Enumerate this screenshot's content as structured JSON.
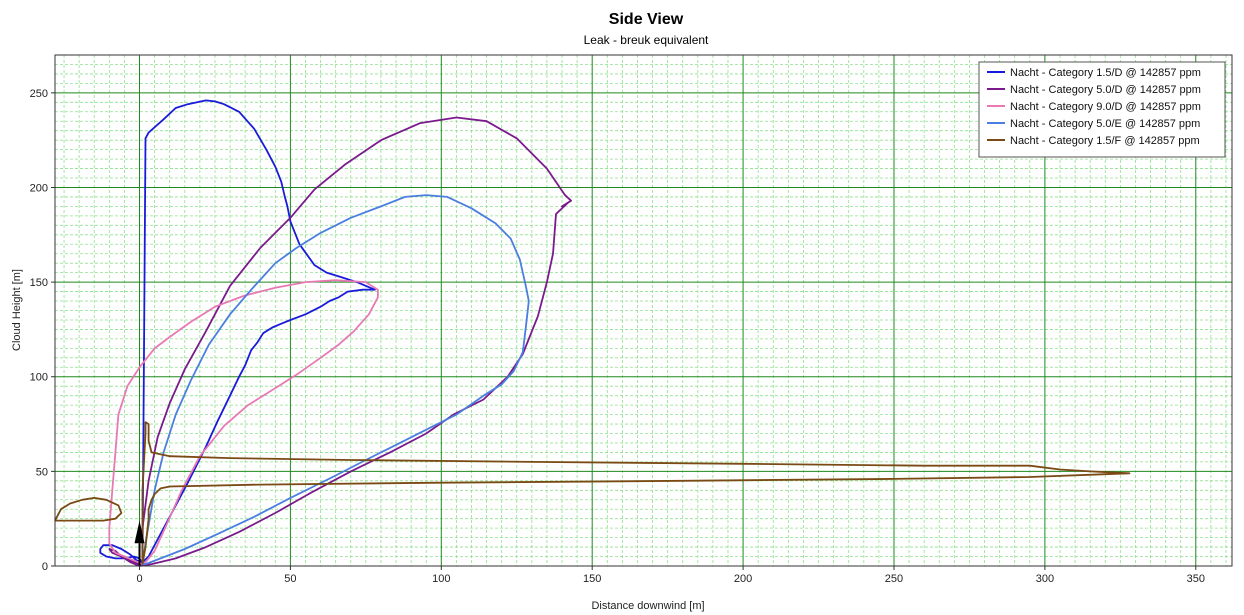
{
  "chart_data": {
    "type": "line",
    "title": "Side View",
    "subtitle": "Leak - breuk equivalent",
    "xlabel": "Distance downwind [m]",
    "ylabel": "Cloud Height [m]",
    "xlim": [
      -28,
      362
    ],
    "ylim": [
      0,
      270
    ],
    "xticks": [
      0,
      50,
      100,
      150,
      200,
      250,
      300,
      350
    ],
    "yticks": [
      0,
      50,
      100,
      150,
      200,
      250
    ],
    "grid": true,
    "legend_position": "top-right",
    "series": [
      {
        "name": "Nacht - Category 1.5/D @ 142857 ppm",
        "color": "#1a1adc",
        "points": [
          [
            1,
            1
          ],
          [
            2,
            226
          ],
          [
            3,
            229
          ],
          [
            8,
            236
          ],
          [
            12,
            242
          ],
          [
            16,
            244
          ],
          [
            22,
            246
          ],
          [
            25,
            245.5
          ],
          [
            28,
            244
          ],
          [
            33,
            240
          ],
          [
            38,
            231
          ],
          [
            42,
            220
          ],
          [
            45,
            211
          ],
          [
            47,
            203
          ],
          [
            48,
            196
          ],
          [
            49,
            190
          ],
          [
            50,
            182
          ],
          [
            53,
            170
          ],
          [
            58,
            159
          ],
          [
            62,
            155
          ],
          [
            66,
            153
          ],
          [
            72,
            150
          ],
          [
            78,
            146
          ],
          [
            74,
            146
          ],
          [
            69,
            145
          ],
          [
            66,
            142
          ],
          [
            63,
            140
          ],
          [
            60,
            137
          ],
          [
            55,
            133
          ],
          [
            50,
            130
          ],
          [
            47,
            128
          ],
          [
            44,
            126
          ],
          [
            41,
            123
          ],
          [
            39,
            118
          ],
          [
            37,
            114
          ],
          [
            35,
            106
          ],
          [
            33,
            100
          ],
          [
            30,
            90
          ],
          [
            26,
            77
          ],
          [
            22,
            63
          ],
          [
            16,
            44
          ],
          [
            10,
            26
          ],
          [
            6,
            14
          ],
          [
            3,
            5
          ],
          [
            1,
            2
          ],
          [
            -1,
            3
          ],
          [
            -3,
            6
          ],
          [
            -6,
            9
          ],
          [
            -9,
            11
          ],
          [
            -12,
            11
          ],
          [
            -13,
            9
          ],
          [
            -13,
            7
          ],
          [
            -11,
            5
          ],
          [
            -8,
            4
          ],
          [
            -5,
            4
          ],
          [
            -2,
            5
          ],
          [
            0,
            4
          ],
          [
            1,
            1
          ]
        ]
      },
      {
        "name": "Nacht - Category 5.0/D @ 142857 ppm",
        "color": "#7a1a8c",
        "points": [
          [
            1,
            1
          ],
          [
            1,
            20
          ],
          [
            3,
            45
          ],
          [
            6,
            68
          ],
          [
            10,
            86
          ],
          [
            15,
            104
          ],
          [
            22,
            124
          ],
          [
            30,
            148
          ],
          [
            40,
            168
          ],
          [
            50,
            184
          ],
          [
            58,
            199
          ],
          [
            68,
            212
          ],
          [
            80,
            225
          ],
          [
            93,
            234
          ],
          [
            105,
            237
          ],
          [
            115,
            235
          ],
          [
            125,
            226
          ],
          [
            135,
            210
          ],
          [
            141,
            196
          ],
          [
            143,
            193
          ],
          [
            140,
            190
          ],
          [
            142,
            192
          ],
          [
            138,
            186
          ],
          [
            137,
            165
          ],
          [
            135,
            150
          ],
          [
            132,
            132
          ],
          [
            127,
            112
          ],
          [
            122,
            100
          ],
          [
            114,
            88
          ],
          [
            104,
            80
          ],
          [
            95,
            70
          ],
          [
            83,
            60
          ],
          [
            70,
            50
          ],
          [
            56,
            38
          ],
          [
            45,
            28
          ],
          [
            33,
            18
          ],
          [
            22,
            10
          ],
          [
            12,
            4
          ],
          [
            4,
            1
          ],
          [
            0,
            0
          ],
          [
            -3,
            2
          ],
          [
            -6,
            5
          ],
          [
            -8,
            8
          ],
          [
            -10,
            9
          ],
          [
            -9,
            7
          ],
          [
            -6,
            5
          ],
          [
            -3,
            3
          ],
          [
            0,
            1
          ],
          [
            1,
            1
          ]
        ]
      },
      {
        "name": "Nacht - Category 9.0/D @ 142857 ppm",
        "color": "#e879b4",
        "points": [
          [
            1,
            1
          ],
          [
            -2,
            3
          ],
          [
            -5,
            5
          ],
          [
            -8,
            7
          ],
          [
            -10,
            12
          ],
          [
            -10,
            20
          ],
          [
            -9,
            40
          ],
          [
            -8,
            60
          ],
          [
            -7,
            80
          ],
          [
            -4,
            95
          ],
          [
            0,
            105
          ],
          [
            5,
            115
          ],
          [
            10,
            121
          ],
          [
            17,
            129
          ],
          [
            25,
            137
          ],
          [
            35,
            143
          ],
          [
            45,
            147
          ],
          [
            55,
            150
          ],
          [
            65,
            151
          ],
          [
            75,
            150
          ],
          [
            79,
            146
          ],
          [
            79,
            142
          ],
          [
            76,
            133
          ],
          [
            71,
            124
          ],
          [
            66,
            117
          ],
          [
            60,
            110
          ],
          [
            52,
            101
          ],
          [
            45,
            94
          ],
          [
            36,
            85
          ],
          [
            28,
            74
          ],
          [
            20,
            58
          ],
          [
            14,
            40
          ],
          [
            9,
            22
          ],
          [
            5,
            8
          ],
          [
            2,
            2
          ],
          [
            1,
            1
          ]
        ]
      },
      {
        "name": "Nacht - Category 5.0/E @ 142857 ppm",
        "color": "#4a7ee0",
        "points": [
          [
            1,
            1
          ],
          [
            2,
            12
          ],
          [
            5,
            40
          ],
          [
            8,
            60
          ],
          [
            12,
            80
          ],
          [
            17,
            98
          ],
          [
            23,
            117
          ],
          [
            30,
            133
          ],
          [
            37,
            146
          ],
          [
            45,
            160
          ],
          [
            52,
            168
          ],
          [
            60,
            176
          ],
          [
            70,
            184
          ],
          [
            80,
            190
          ],
          [
            88,
            195
          ],
          [
            95,
            196
          ],
          [
            102,
            195
          ],
          [
            110,
            189
          ],
          [
            118,
            181
          ],
          [
            123,
            173
          ],
          [
            126,
            162
          ],
          [
            128,
            148
          ],
          [
            129,
            140
          ],
          [
            128,
            126
          ],
          [
            127,
            113
          ],
          [
            124,
            103
          ],
          [
            120,
            96
          ],
          [
            114,
            90
          ],
          [
            105,
            80
          ],
          [
            95,
            72
          ],
          [
            85,
            64
          ],
          [
            75,
            56
          ],
          [
            64,
            47
          ],
          [
            50,
            36
          ],
          [
            38,
            26
          ],
          [
            26,
            17
          ],
          [
            15,
            9
          ],
          [
            7,
            4
          ],
          [
            2,
            1
          ],
          [
            1,
            1
          ]
        ]
      },
      {
        "name": "Nacht - Category 1.5/F @ 142857 ppm",
        "color": "#7a4a14",
        "points": [
          [
            1,
            1
          ],
          [
            1,
            20
          ],
          [
            1,
            40
          ],
          [
            2,
            70
          ],
          [
            2,
            76
          ],
          [
            3,
            75
          ],
          [
            3,
            66
          ],
          [
            4,
            60
          ],
          [
            10,
            58
          ],
          [
            30,
            57
          ],
          [
            70,
            56
          ],
          [
            130,
            55
          ],
          [
            200,
            54
          ],
          [
            260,
            53
          ],
          [
            295,
            53
          ],
          [
            305,
            51
          ],
          [
            315,
            50
          ],
          [
            328,
            49
          ],
          [
            320,
            48.5
          ],
          [
            295,
            47
          ],
          [
            250,
            46
          ],
          [
            180,
            45
          ],
          [
            100,
            44
          ],
          [
            40,
            43
          ],
          [
            10,
            42
          ],
          [
            7,
            41
          ],
          [
            5,
            38
          ],
          [
            4,
            35
          ],
          [
            3,
            30
          ],
          [
            3,
            25
          ],
          [
            2,
            10
          ],
          [
            1,
            1
          ]
        ]
      },
      {
        "name": "",
        "color": "#7a4a14",
        "points": [
          [
            -28,
            24
          ],
          [
            -26,
            30
          ],
          [
            -23,
            33
          ],
          [
            -19,
            35
          ],
          [
            -15,
            36
          ],
          [
            -11,
            35
          ],
          [
            -7,
            32
          ],
          [
            -6,
            28
          ],
          [
            -8,
            25
          ],
          [
            -12,
            24
          ],
          [
            -18,
            24
          ],
          [
            -24,
            24
          ],
          [
            -28,
            24
          ]
        ]
      }
    ]
  }
}
